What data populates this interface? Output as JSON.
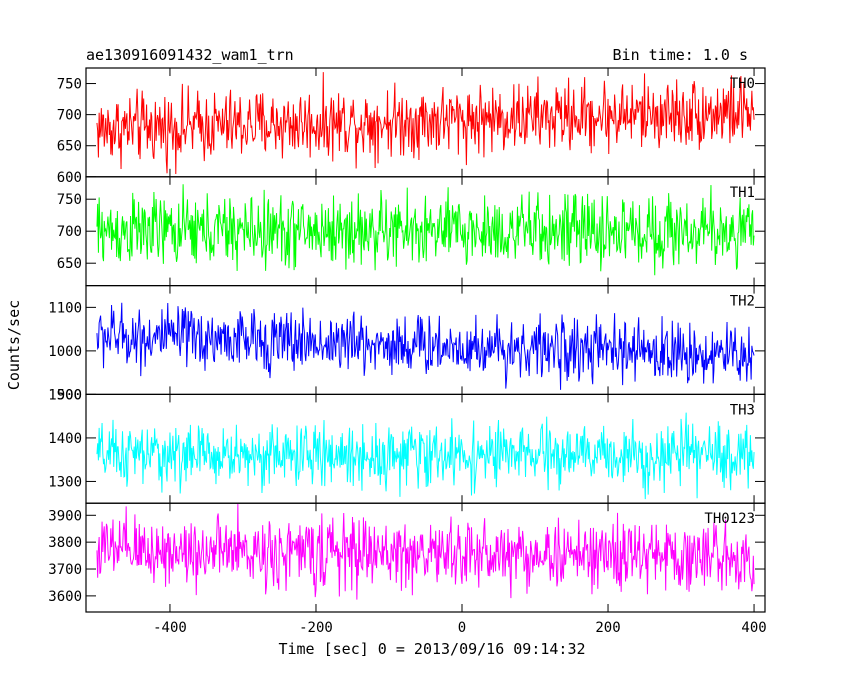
{
  "header": {
    "title": "ae130916091432_wam1_trn",
    "bin_time": "Bin time: 1.0 s"
  },
  "axes": {
    "xlabel": "Time [sec] 0 = 2013/09/16 09:14:32",
    "ylabel": "Counts/sec"
  },
  "chart_data": {
    "type": "line",
    "title": "ae130916091432_wam1_trn",
    "subtitle": "Bin time: 1.0 s",
    "xlabel": "Time [sec] 0 = 2013/09/16 09:14:32",
    "ylabel": "Counts/sec",
    "xlim": [
      -515,
      415
    ],
    "xticks": [
      -400,
      -200,
      0,
      200,
      400
    ],
    "x_start": -500,
    "x_end": 400,
    "x_step": 1,
    "grid": false,
    "series": [
      {
        "name": "TH0",
        "color": "#ff0000",
        "ylim": [
          600,
          775
        ],
        "yticks": [
          600,
          650,
          700,
          750
        ],
        "mean_start": 677,
        "mean_end": 705,
        "noise_amplitude": 28
      },
      {
        "name": "TH1",
        "color": "#00ff00",
        "ylim": [
          615,
          785
        ],
        "yticks": [
          650,
          700,
          750
        ],
        "mean_start": 700,
        "mean_end": 700,
        "noise_amplitude": 28
      },
      {
        "name": "TH2",
        "color": "#0000ff",
        "ylim": [
          900,
          1150
        ],
        "yticks": [
          900,
          1000,
          1100
        ],
        "mean_start": 1035,
        "mean_end": 990,
        "noise_amplitude": 35
      },
      {
        "name": "TH3",
        "color": "#00ffff",
        "ylim": [
          1250,
          1500
        ],
        "yticks": [
          1300,
          1400,
          1500
        ],
        "mean_start": 1360,
        "mean_end": 1360,
        "noise_amplitude": 35
      },
      {
        "name": "TH0123",
        "color": "#ff00ff",
        "ylim": [
          3540,
          3945
        ],
        "yticks": [
          3600,
          3700,
          3800,
          3900
        ],
        "mean_start": 3770,
        "mean_end": 3745,
        "noise_amplitude": 65
      }
    ]
  }
}
